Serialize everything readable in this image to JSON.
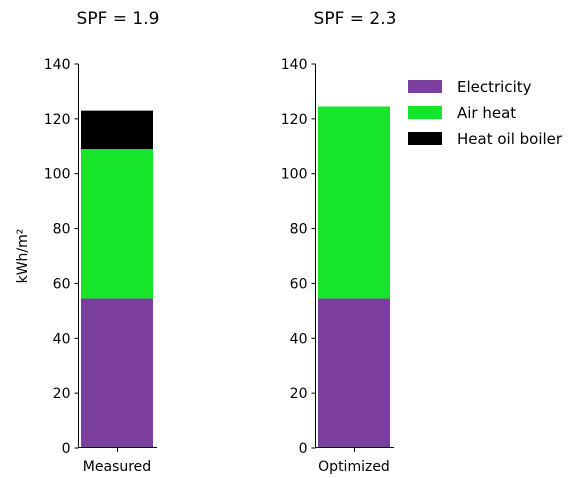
{
  "chart_data": {
    "type": "bar",
    "stacked": true,
    "ylabel": "kWh/m²",
    "yticks": [
      0,
      20,
      40,
      60,
      80,
      100,
      120,
      140
    ],
    "ylim": [
      0,
      140
    ],
    "grid": false,
    "legend_position": "top-right",
    "legend": [
      {
        "name": "Electricity",
        "color": "#7b3f9e"
      },
      {
        "name": "Air heat",
        "color": "#16e52a"
      },
      {
        "name": "Heat oil boiler",
        "color": "#000000"
      }
    ],
    "panels": [
      {
        "title": "SPF = 1.9",
        "category": "Measured",
        "segments": [
          {
            "series": "Electricity",
            "value": 54.5
          },
          {
            "series": "Air heat",
            "value": 54.5
          },
          {
            "series": "Heat oil boiler",
            "value": 14
          }
        ]
      },
      {
        "title": "SPF = 2.3",
        "category": "Optimized",
        "segments": [
          {
            "series": "Electricity",
            "value": 54.5
          },
          {
            "series": "Air heat",
            "value": 70
          }
        ]
      }
    ]
  }
}
